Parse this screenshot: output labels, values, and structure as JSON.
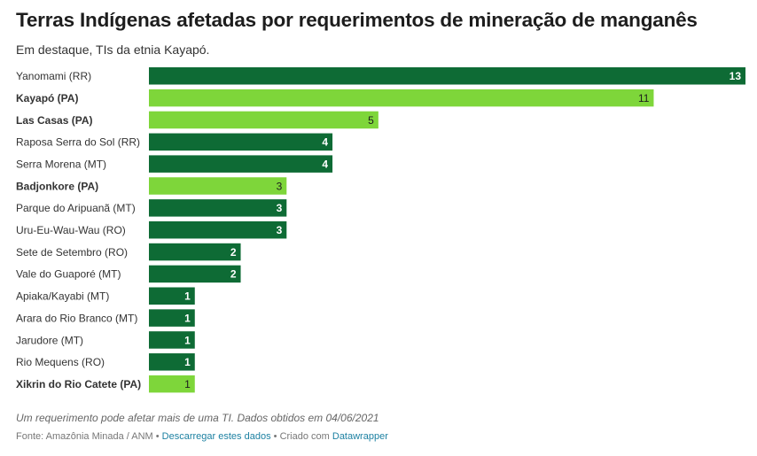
{
  "title": "Terras Indígenas afetadas por requerimentos de mineração de manganês",
  "subtitle": "Em destaque, TIs da etnia Kayapó.",
  "colors": {
    "default_bar": "#0e6b35",
    "highlight_bar": "#7ed63a",
    "footer_link": "#1d81a2"
  },
  "chart_data": {
    "type": "bar",
    "orientation": "horizontal",
    "categories": [
      "Yanomami (RR)",
      "Kayapó (PA)",
      "Las Casas (PA)",
      "Raposa Serra do Sol (RR)",
      "Serra Morena (MT)",
      "Badjonkore (PA)",
      "Parque do Aripuanã (MT)",
      "Uru-Eu-Wau-Wau (RO)",
      "Sete de Setembro (RO)",
      "Vale do Guaporé (MT)",
      "Apiaka/Kayabi (MT)",
      "Arara do Rio Branco (MT)",
      "Jarudore (MT)",
      "Rio Mequens (RO)",
      "Xikrin do Rio Catete (PA)"
    ],
    "values": [
      13,
      11,
      5,
      4,
      4,
      3,
      3,
      3,
      2,
      2,
      1,
      1,
      1,
      1,
      1
    ],
    "highlighted": [
      false,
      true,
      true,
      false,
      false,
      true,
      false,
      false,
      false,
      false,
      false,
      false,
      false,
      false,
      true
    ],
    "xlim": [
      0,
      13
    ],
    "data_labels": true,
    "grid": false
  },
  "notes": "Um requerimento pode afetar mais de uma TI. Dados obtidos em 04/06/2021",
  "footer": {
    "source": "Fonte: Amazônia Minada / ANM",
    "separator": "•",
    "download_link": "Descarregar estes dados",
    "made_with": "Criado com",
    "tool_link": "Datawrapper"
  }
}
